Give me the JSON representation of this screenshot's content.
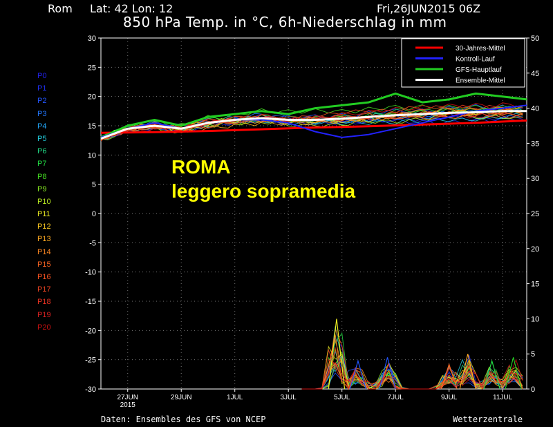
{
  "header": {
    "station": "Rom",
    "latlon": "Lat: 42 Lon: 12",
    "datetime": "Fri,26JUN2015 06Z",
    "title": "850 hPa Temp. in °C, 6h-Niederschlag in mm"
  },
  "annotation": {
    "line1": "ROMA",
    "line2": "leggero sopramedia"
  },
  "footer": {
    "source": "Daten: Ensembles des GFS von NCEP",
    "brand": "Wetterzentrale"
  },
  "members": [
    {
      "label": "P0",
      "color": "#2222ee"
    },
    {
      "label": "P1",
      "color": "#2233ff"
    },
    {
      "label": "P2",
      "color": "#2255ff"
    },
    {
      "label": "P3",
      "color": "#2277ff"
    },
    {
      "label": "P4",
      "color": "#22aaff"
    },
    {
      "label": "P5",
      "color": "#22ccdd"
    },
    {
      "label": "P6",
      "color": "#22dd88"
    },
    {
      "label": "P7",
      "color": "#22dd44"
    },
    {
      "label": "P8",
      "color": "#44dd22"
    },
    {
      "label": "P9",
      "color": "#88ee22"
    },
    {
      "label": "P10",
      "color": "#bbee22"
    },
    {
      "label": "P11",
      "color": "#eeee22"
    },
    {
      "label": "P12",
      "color": "#ffcc22"
    },
    {
      "label": "P13",
      "color": "#ffaa22"
    },
    {
      "label": "P14",
      "color": "#ff8822"
    },
    {
      "label": "P15",
      "color": "#ff6622"
    },
    {
      "label": "P16",
      "color": "#ff5522"
    },
    {
      "label": "P17",
      "color": "#ee4422"
    },
    {
      "label": "P18",
      "color": "#ee3322"
    },
    {
      "label": "P19",
      "color": "#dd2222"
    },
    {
      "label": "P20",
      "color": "#cc1111"
    }
  ],
  "chart_data": {
    "type": "line",
    "title": "850 hPa Temp. in °C, 6h-Niederschlag in mm",
    "xlabel": "",
    "ylabel": "",
    "x_ticks": [
      {
        "day": 1,
        "label": "27JUN",
        "sub": "2015"
      },
      {
        "day": 3,
        "label": "29JUN"
      },
      {
        "day": 5,
        "label": "1JUL"
      },
      {
        "day": 7,
        "label": "3JUL"
      },
      {
        "day": 9,
        "label": "5JUL"
      },
      {
        "day": 11,
        "label": "7JUL"
      },
      {
        "day": 13,
        "label": "9JUL"
      },
      {
        "day": 15,
        "label": "11JUL"
      }
    ],
    "xlim": [
      0,
      15.9
    ],
    "ylim_left": [
      -30,
      30
    ],
    "yticks_left": [
      30,
      25,
      20,
      15,
      10,
      5,
      0,
      -5,
      -10,
      -15,
      -20,
      -25,
      -30
    ],
    "ylim_right": [
      0,
      50
    ],
    "yticks_right": [
      50,
      45,
      40,
      35,
      30,
      25,
      20,
      15,
      10,
      5,
      0
    ],
    "grid": true,
    "legend_position": "top-right",
    "legend": [
      {
        "name": "30-Jahres-Mittel",
        "color": "#ff0000"
      },
      {
        "name": "Kontroll-Lauf",
        "color": "#2222ff"
      },
      {
        "name": "GFS-Hauptlauf",
        "color": "#22cc22"
      },
      {
        "name": "Ensemble-Mittel",
        "color": "#ffffff"
      }
    ],
    "series": [
      {
        "name": "30-Jahres-Mittel",
        "color": "#ff0000",
        "width": 3,
        "x": [
          0,
          2,
          4,
          6,
          8,
          10,
          12,
          14,
          15.9
        ],
        "y": [
          13.8,
          13.9,
          14.1,
          14.4,
          14.7,
          14.9,
          15.2,
          15.5,
          15.9
        ]
      },
      {
        "name": "GFS-Hauptlauf",
        "color": "#22cc22",
        "width": 3,
        "x": [
          0,
          1,
          2,
          3,
          4,
          5,
          6,
          7,
          8,
          9,
          10,
          11,
          12,
          13,
          14,
          15,
          15.9
        ],
        "y": [
          13,
          15,
          16,
          15,
          16.5,
          17,
          17.5,
          17,
          18,
          18.5,
          19,
          20.5,
          19,
          19.5,
          20.5,
          20,
          19.5
        ]
      },
      {
        "name": "Kontroll-Lauf",
        "color": "#2222ff",
        "width": 2,
        "x": [
          0,
          1,
          2,
          3,
          4,
          5,
          6,
          7,
          8,
          9,
          10,
          11,
          12,
          13,
          14,
          15,
          15.9
        ],
        "y": [
          13,
          14.5,
          15.5,
          14.5,
          15.5,
          16,
          16,
          15.5,
          14,
          13,
          13.5,
          14.5,
          15.5,
          16.5,
          17.5,
          18,
          18.5
        ]
      },
      {
        "name": "Ensemble-Mittel",
        "color": "#ffffff",
        "width": 3,
        "x": [
          0,
          1,
          2,
          3,
          4,
          5,
          6,
          7,
          8,
          9,
          10,
          11,
          12,
          13,
          14,
          15,
          15.9
        ],
        "y": [
          12.8,
          14.5,
          15,
          14.5,
          15.5,
          16,
          16.3,
          16,
          16,
          16.2,
          16.5,
          16.8,
          17,
          17.2,
          17.3,
          17.5,
          17.5
        ]
      }
    ],
    "precipitation_peaks": [
      {
        "day": 8.8,
        "value": 10,
        "color": "#eeee22"
      },
      {
        "day": 9.6,
        "value": 4,
        "color": "#2255ff"
      },
      {
        "day": 10.7,
        "value": 4.5,
        "color": "#2255ff"
      },
      {
        "day": 13.0,
        "value": 3.5,
        "color": "#ff6622"
      },
      {
        "day": 13.7,
        "value": 5,
        "color": "#ffaa22"
      },
      {
        "day": 14.6,
        "value": 4,
        "color": "#22dd44"
      },
      {
        "day": 15.4,
        "value": 4.5,
        "color": "#22cc22"
      }
    ]
  }
}
